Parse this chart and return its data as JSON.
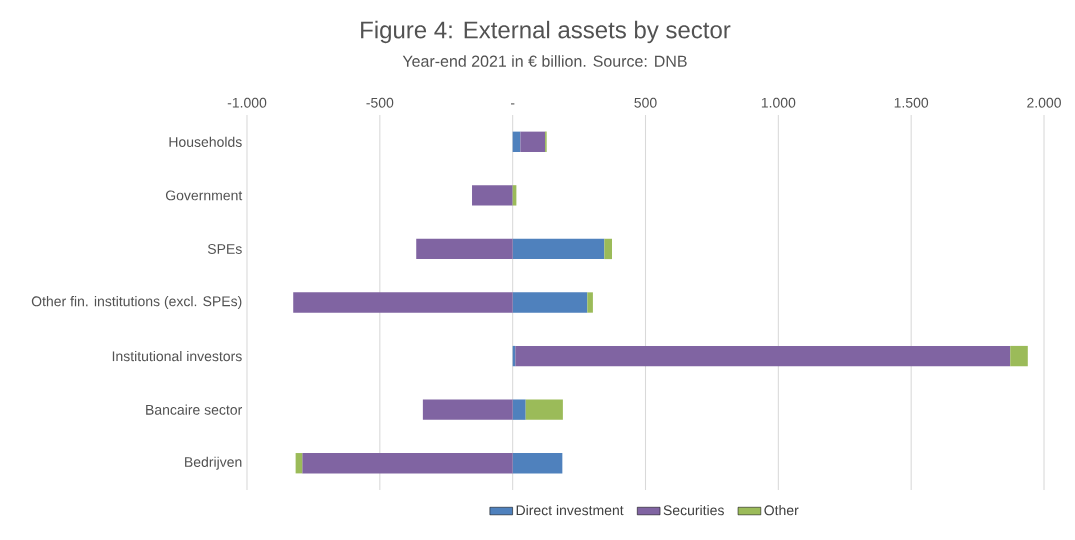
{
  "chart_data": {
    "type": "bar",
    "orientation": "horizontal",
    "stacked": true,
    "title": "Figure 4: External assets by sector",
    "subtitle": "Year-end 2021 in € billion. Source: DNB",
    "categories": [
      "Households",
      "Government",
      "SPEs",
      "Other fin. institutions (excl. SPEs)",
      "Institutional investors",
      "Bancaire sector",
      "Bedrijven"
    ],
    "series": [
      {
        "name": "Direct investment",
        "color": "#4f81bd",
        "values": [
          29,
          0,
          345,
          281,
          10,
          49,
          187
        ]
      },
      {
        "name": "Securities",
        "color": "#8064a2",
        "values": [
          93,
          -153,
          -363,
          -826,
          1863,
          -338,
          -792
        ]
      },
      {
        "name": "Other",
        "color": "#9bbb59",
        "values": [
          6,
          14,
          29,
          21,
          66,
          140,
          -25
        ]
      }
    ],
    "xlim": [
      -1000,
      2000
    ],
    "xticks": [
      {
        "value": -1000,
        "label": "-1.000"
      },
      {
        "value": -500,
        "label": "-500"
      },
      {
        "value": 0,
        "label": "-"
      },
      500,
      {
        "value": 1000,
        "label": "1.000"
      },
      {
        "value": 1500,
        "label": "1.500"
      },
      {
        "value": 2000,
        "label": "2.000"
      }
    ],
    "grid": "x",
    "legend": "bottom"
  }
}
